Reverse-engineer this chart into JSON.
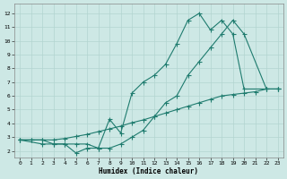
{
  "xlabel": "Humidex (Indice chaleur)",
  "background_color": "#cde8e5",
  "line_color": "#1e7b6e",
  "grid_color": "#b2d4d0",
  "xlim_min": -0.5,
  "xlim_max": 23.5,
  "ylim_min": 1.5,
  "ylim_max": 12.7,
  "xticks": [
    0,
    1,
    2,
    3,
    4,
    5,
    6,
    7,
    8,
    9,
    10,
    11,
    12,
    13,
    14,
    15,
    16,
    17,
    18,
    19,
    20,
    21,
    22,
    23
  ],
  "yticks": [
    2,
    3,
    4,
    5,
    6,
    7,
    8,
    9,
    10,
    11,
    12
  ],
  "line_upper_x": [
    0,
    2,
    3,
    4,
    5,
    6,
    7,
    8,
    9,
    10,
    11,
    12,
    13,
    14,
    15,
    16,
    17,
    18,
    19,
    20,
    22,
    23
  ],
  "line_upper_y": [
    2.8,
    2.5,
    2.5,
    2.5,
    1.85,
    2.2,
    2.2,
    4.3,
    3.3,
    6.2,
    7.0,
    7.5,
    8.3,
    9.8,
    11.5,
    12.0,
    10.8,
    11.5,
    10.5,
    6.5,
    6.5,
    6.5
  ],
  "line_middle_x": [
    0,
    1,
    2,
    3,
    4,
    5,
    6,
    7,
    8,
    9,
    10,
    11,
    12,
    13,
    14,
    15,
    16,
    17,
    18,
    19,
    20,
    22,
    23
  ],
  "line_middle_y": [
    2.8,
    2.8,
    2.8,
    2.5,
    2.5,
    2.5,
    2.5,
    2.2,
    2.2,
    2.5,
    3.0,
    3.5,
    4.5,
    5.5,
    6.0,
    7.5,
    8.5,
    9.5,
    10.5,
    11.5,
    10.5,
    6.5,
    6.5
  ],
  "line_lower_x": [
    0,
    1,
    2,
    3,
    4,
    5,
    6,
    7,
    8,
    9,
    10,
    11,
    12,
    13,
    14,
    15,
    16,
    17,
    18,
    19,
    20,
    21,
    22,
    23
  ],
  "line_lower_y": [
    2.8,
    2.8,
    2.8,
    2.8,
    2.9,
    3.05,
    3.2,
    3.4,
    3.6,
    3.8,
    4.05,
    4.25,
    4.5,
    4.75,
    5.0,
    5.25,
    5.5,
    5.75,
    6.0,
    6.1,
    6.2,
    6.3,
    6.5,
    6.5
  ],
  "marker_size": 2.0,
  "line_width": 0.8,
  "tick_fontsize": 4.5,
  "xlabel_fontsize": 5.5
}
